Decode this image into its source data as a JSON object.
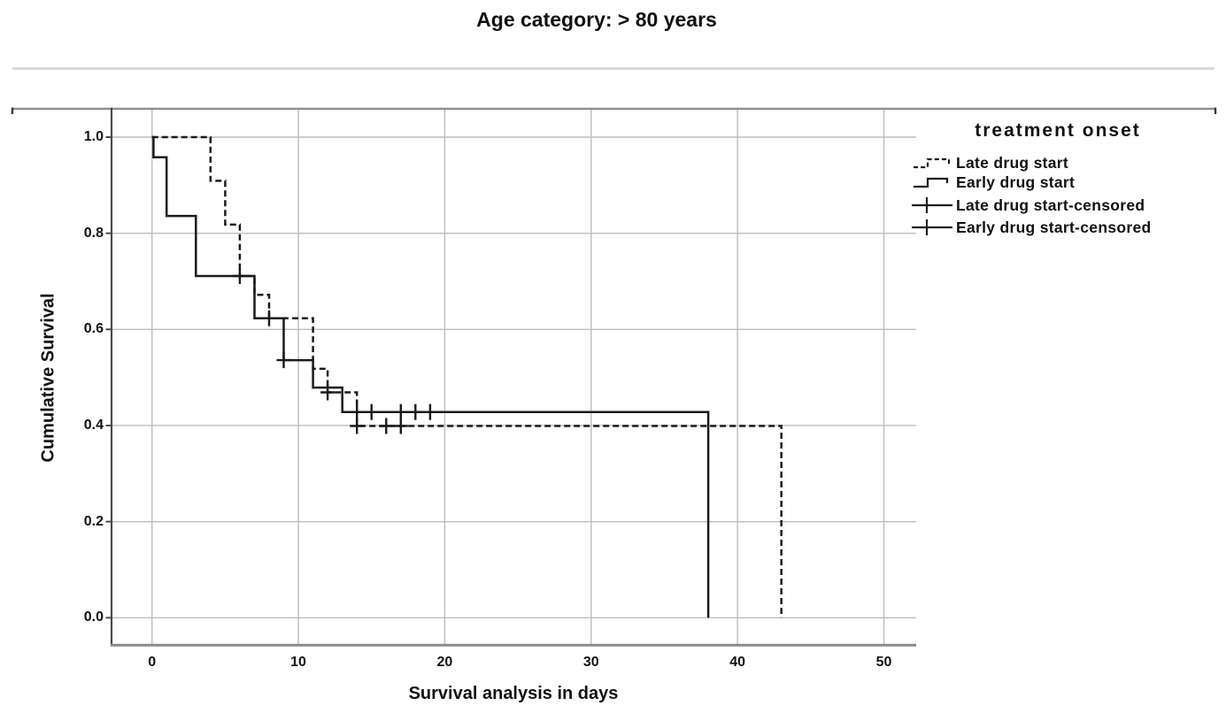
{
  "title": "Age category: > 80 years",
  "axes": {
    "x": {
      "title": "Survival analysis in days",
      "ticks": [
        {
          "label": "0",
          "value": 0
        },
        {
          "label": "10",
          "value": 10
        },
        {
          "label": "20",
          "value": 20
        },
        {
          "label": "30",
          "value": 30
        },
        {
          "label": "40",
          "value": 40
        },
        {
          "label": "50",
          "value": 50
        }
      ]
    },
    "y": {
      "title": "Cumulative Survival",
      "ticks": [
        {
          "label": "1.0",
          "value": 1.0
        },
        {
          "label": "0.8",
          "value": 0.8
        },
        {
          "label": "0.6",
          "value": 0.6
        },
        {
          "label": "0.4",
          "value": 0.4
        },
        {
          "label": "0.2",
          "value": 0.2
        },
        {
          "label": "0.0",
          "value": 0.0
        }
      ]
    }
  },
  "legend": {
    "title": "treatment onset",
    "entries": [
      {
        "label": "Late drug start",
        "symbol": "dashed-step-line"
      },
      {
        "label": "Early drug start",
        "symbol": "solid-step-line"
      },
      {
        "label": "Late drug start-censored",
        "symbol": "plus-on-line"
      },
      {
        "label": "Early drug start-censored",
        "symbol": "plus-on-line"
      }
    ]
  },
  "chart_data": {
    "type": "line",
    "subtype": "kaplan_meier_step",
    "title": "Age category: > 80 years",
    "xlabel": "Survival analysis in days",
    "ylabel": "Cumulative Survival",
    "xlim": [
      -2.76,
      52.2
    ],
    "ylim": [
      -0.057,
      1.059
    ],
    "x_ticks": [
      0,
      10,
      20,
      30,
      40,
      50
    ],
    "y_ticks": [
      0.0,
      0.2,
      0.4,
      0.6,
      0.8,
      1.0
    ],
    "grid": true,
    "legend_position": "outside-top-right",
    "line_color": "#1a1a1a",
    "series": [
      {
        "name": "Late drug start",
        "line_style": "dashed",
        "start": [
          0,
          1.0
        ],
        "steps": [
          [
            4,
            0.909
          ],
          [
            5,
            0.818
          ],
          [
            6,
            0.711
          ],
          [
            7,
            0.672
          ],
          [
            8,
            0.623
          ],
          [
            11,
            0.518
          ],
          [
            12,
            0.469
          ],
          [
            14,
            0.399
          ],
          [
            43,
            0.0
          ]
        ],
        "censored_points": [
          [
            8,
            0.623
          ],
          [
            12,
            0.469
          ],
          [
            14,
            0.399
          ],
          [
            16,
            0.399
          ],
          [
            17,
            0.399
          ]
        ]
      },
      {
        "name": "Early drug start",
        "line_style": "solid",
        "start": [
          0,
          1.0
        ],
        "steps": [
          [
            0.1,
            0.958
          ],
          [
            1,
            0.836
          ],
          [
            3,
            0.711
          ],
          [
            7,
            0.623
          ],
          [
            9,
            0.536
          ],
          [
            11,
            0.479
          ],
          [
            13,
            0.428
          ],
          [
            38,
            0.0
          ]
        ],
        "censored_points": [
          [
            6,
            0.711
          ],
          [
            9,
            0.536
          ],
          [
            14,
            0.428
          ],
          [
            15,
            0.428
          ],
          [
            17,
            0.428
          ],
          [
            18,
            0.428
          ],
          [
            19,
            0.428
          ]
        ]
      }
    ]
  }
}
